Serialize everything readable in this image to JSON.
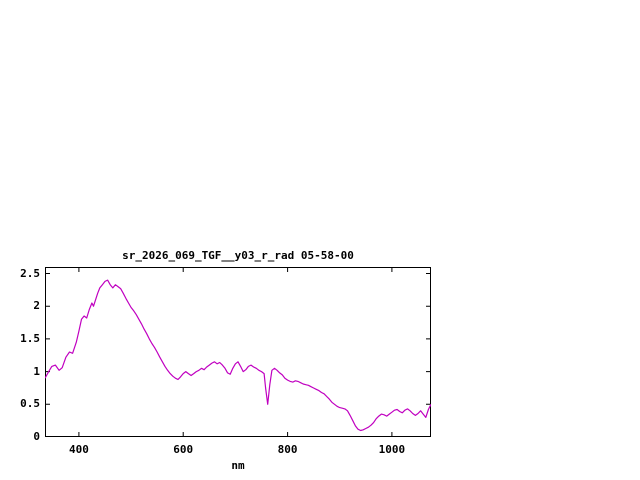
{
  "chart_data": {
    "type": "line",
    "title": "sr_2026_069_TGF__y03_r_rad 05-58-00",
    "xlabel": "nm",
    "ylabel": "",
    "xlim": [
      335,
      1075
    ],
    "ylim": [
      0,
      2.6
    ],
    "x_ticks": [
      400,
      600,
      800,
      1000
    ],
    "x_tick_labels": [
      "400",
      "600",
      "800",
      "1000"
    ],
    "y_ticks": [
      0,
      0.5,
      1,
      1.5,
      2,
      2.5
    ],
    "y_tick_labels": [
      "0",
      "0.5",
      "1",
      "1.5",
      "2",
      "2.5"
    ],
    "grid": false,
    "legend": "none",
    "line_color": "#c000c0",
    "border_color": "#000000",
    "background_color": "#ffffff",
    "series": [
      {
        "name": "sr_2026_069_TGF__y03_r_rad",
        "points": [
          [
            335,
            0.9
          ],
          [
            342,
            1.0
          ],
          [
            348,
            1.08
          ],
          [
            355,
            1.1
          ],
          [
            362,
            1.02
          ],
          [
            368,
            1.06
          ],
          [
            375,
            1.22
          ],
          [
            382,
            1.3
          ],
          [
            388,
            1.28
          ],
          [
            395,
            1.45
          ],
          [
            400,
            1.62
          ],
          [
            405,
            1.8
          ],
          [
            410,
            1.85
          ],
          [
            415,
            1.82
          ],
          [
            420,
            1.95
          ],
          [
            425,
            2.05
          ],
          [
            428,
            2.0
          ],
          [
            432,
            2.1
          ],
          [
            436,
            2.2
          ],
          [
            440,
            2.28
          ],
          [
            445,
            2.33
          ],
          [
            450,
            2.38
          ],
          [
            455,
            2.4
          ],
          [
            460,
            2.33
          ],
          [
            465,
            2.28
          ],
          [
            470,
            2.33
          ],
          [
            475,
            2.3
          ],
          [
            480,
            2.27
          ],
          [
            485,
            2.2
          ],
          [
            490,
            2.12
          ],
          [
            495,
            2.05
          ],
          [
            500,
            1.98
          ],
          [
            505,
            1.93
          ],
          [
            510,
            1.87
          ],
          [
            515,
            1.8
          ],
          [
            520,
            1.73
          ],
          [
            525,
            1.65
          ],
          [
            530,
            1.58
          ],
          [
            535,
            1.5
          ],
          [
            540,
            1.43
          ],
          [
            545,
            1.37
          ],
          [
            550,
            1.3
          ],
          [
            555,
            1.22
          ],
          [
            560,
            1.15
          ],
          [
            565,
            1.08
          ],
          [
            570,
            1.02
          ],
          [
            575,
            0.97
          ],
          [
            580,
            0.93
          ],
          [
            585,
            0.9
          ],
          [
            590,
            0.88
          ],
          [
            595,
            0.92
          ],
          [
            600,
            0.97
          ],
          [
            605,
            1.0
          ],
          [
            610,
            0.97
          ],
          [
            615,
            0.94
          ],
          [
            620,
            0.97
          ],
          [
            625,
            1.0
          ],
          [
            630,
            1.02
          ],
          [
            635,
            1.05
          ],
          [
            640,
            1.03
          ],
          [
            645,
            1.07
          ],
          [
            650,
            1.1
          ],
          [
            655,
            1.13
          ],
          [
            660,
            1.15
          ],
          [
            665,
            1.12
          ],
          [
            670,
            1.14
          ],
          [
            675,
            1.1
          ],
          [
            680,
            1.05
          ],
          [
            685,
            0.98
          ],
          [
            690,
            0.96
          ],
          [
            695,
            1.05
          ],
          [
            700,
            1.12
          ],
          [
            705,
            1.15
          ],
          [
            710,
            1.08
          ],
          [
            715,
            1.0
          ],
          [
            720,
            1.03
          ],
          [
            725,
            1.08
          ],
          [
            730,
            1.1
          ],
          [
            735,
            1.07
          ],
          [
            740,
            1.05
          ],
          [
            745,
            1.02
          ],
          [
            750,
            1.0
          ],
          [
            755,
            0.97
          ],
          [
            758,
            0.75
          ],
          [
            762,
            0.5
          ],
          [
            766,
            0.8
          ],
          [
            770,
            1.02
          ],
          [
            775,
            1.05
          ],
          [
            780,
            1.02
          ],
          [
            785,
            0.98
          ],
          [
            790,
            0.95
          ],
          [
            795,
            0.9
          ],
          [
            800,
            0.87
          ],
          [
            805,
            0.85
          ],
          [
            810,
            0.84
          ],
          [
            815,
            0.86
          ],
          [
            820,
            0.85
          ],
          [
            825,
            0.83
          ],
          [
            830,
            0.81
          ],
          [
            835,
            0.8
          ],
          [
            840,
            0.79
          ],
          [
            845,
            0.77
          ],
          [
            850,
            0.75
          ],
          [
            855,
            0.73
          ],
          [
            860,
            0.71
          ],
          [
            865,
            0.68
          ],
          [
            870,
            0.66
          ],
          [
            875,
            0.62
          ],
          [
            880,
            0.58
          ],
          [
            885,
            0.53
          ],
          [
            890,
            0.5
          ],
          [
            895,
            0.47
          ],
          [
            900,
            0.45
          ],
          [
            905,
            0.44
          ],
          [
            910,
            0.43
          ],
          [
            915,
            0.4
          ],
          [
            920,
            0.33
          ],
          [
            925,
            0.25
          ],
          [
            930,
            0.17
          ],
          [
            935,
            0.12
          ],
          [
            940,
            0.1
          ],
          [
            945,
            0.11
          ],
          [
            950,
            0.13
          ],
          [
            955,
            0.15
          ],
          [
            960,
            0.18
          ],
          [
            965,
            0.22
          ],
          [
            970,
            0.28
          ],
          [
            975,
            0.32
          ],
          [
            980,
            0.35
          ],
          [
            985,
            0.34
          ],
          [
            990,
            0.32
          ],
          [
            995,
            0.35
          ],
          [
            1000,
            0.38
          ],
          [
            1005,
            0.41
          ],
          [
            1010,
            0.42
          ],
          [
            1015,
            0.39
          ],
          [
            1020,
            0.37
          ],
          [
            1025,
            0.41
          ],
          [
            1030,
            0.43
          ],
          [
            1035,
            0.4
          ],
          [
            1040,
            0.36
          ],
          [
            1045,
            0.33
          ],
          [
            1050,
            0.36
          ],
          [
            1055,
            0.4
          ],
          [
            1060,
            0.35
          ],
          [
            1065,
            0.3
          ],
          [
            1070,
            0.42
          ],
          [
            1075,
            0.5
          ]
        ]
      }
    ]
  }
}
